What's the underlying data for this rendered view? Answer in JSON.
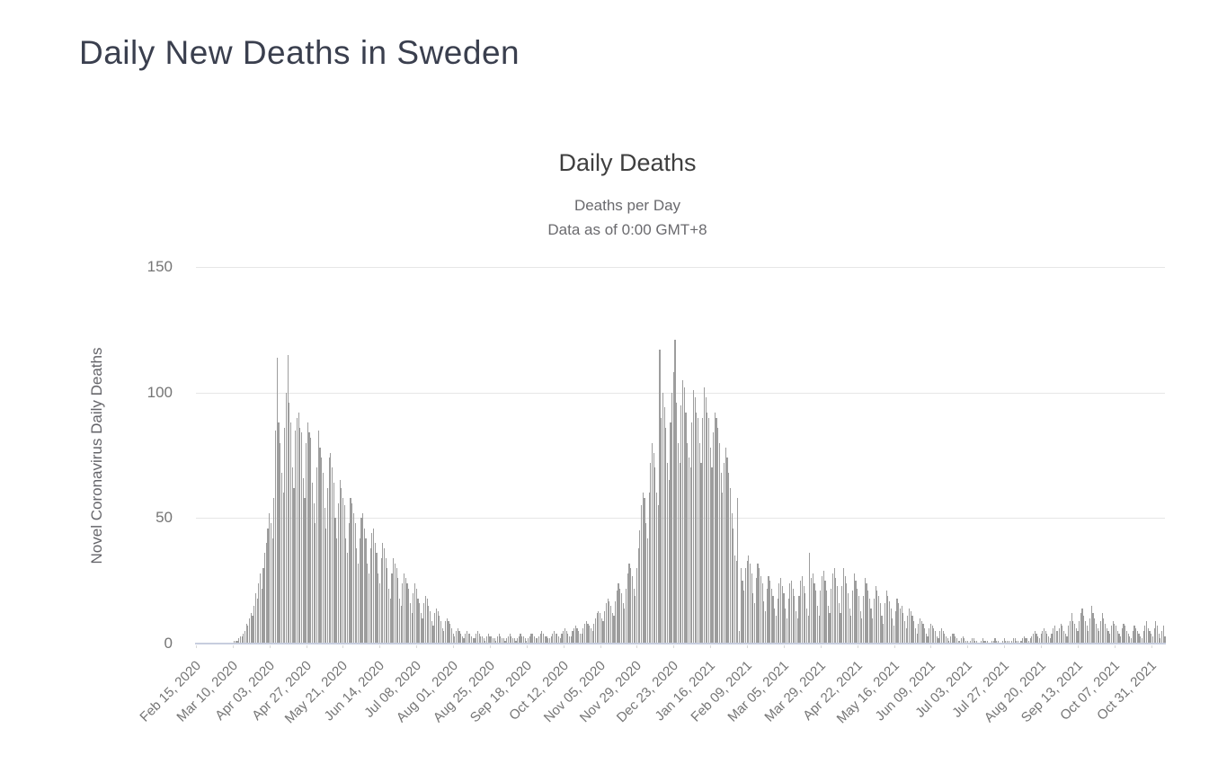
{
  "page": {
    "title": "Daily New Deaths in Sweden"
  },
  "chart_data": {
    "type": "bar",
    "title": "Daily Deaths",
    "subtitle1": "Deaths per Day",
    "subtitle2": "Data as of 0:00 GMT+8",
    "ylabel": "Novel Coronavirus Daily Deaths",
    "xlabel": "",
    "ylim": [
      0,
      150
    ],
    "yticks": [
      0,
      50,
      100,
      150
    ],
    "grid": true,
    "legend": false,
    "bar_color": "#9d9d9d",
    "gridline_color": "#e6e6e6",
    "axis_line_color": "#c7cdde",
    "x_start_date": "Feb 15, 2020",
    "x_tick_interval_days": 24,
    "x_tick_labels": [
      "Feb 15, 2020",
      "Mar 10, 2020",
      "Apr 03, 2020",
      "Apr 27, 2020",
      "May 21, 2020",
      "Jun 14, 2020",
      "Jul 08, 2020",
      "Aug 01, 2020",
      "Aug 25, 2020",
      "Sep 18, 2020",
      "Oct 12, 2020",
      "Nov 05, 2020",
      "Nov 29, 2020",
      "Dec 23, 2020",
      "Jan 16, 2021",
      "Feb 09, 2021",
      "Mar 05, 2021",
      "Mar 29, 2021",
      "Apr 22, 2021",
      "May 16, 2021",
      "Jun 09, 2021",
      "Jul 03, 2021",
      "Jul 27, 2021",
      "Aug 20, 2021",
      "Sep 13, 2021",
      "Oct 07, 2021",
      "Oct 31, 2021"
    ],
    "values": [
      0,
      0,
      0,
      0,
      0,
      0,
      0,
      0,
      0,
      0,
      0,
      0,
      0,
      0,
      0,
      0,
      0,
      0,
      0,
      0,
      0,
      0,
      0,
      0,
      0,
      1,
      1,
      1,
      2,
      3,
      3,
      4,
      5,
      8,
      7,
      10,
      12,
      11,
      15,
      20,
      18,
      24,
      28,
      22,
      30,
      36,
      40,
      46,
      52,
      48,
      42,
      58,
      85,
      114,
      88,
      80,
      68,
      60,
      86,
      100,
      115,
      96,
      88,
      70,
      62,
      85,
      90,
      92,
      86,
      84,
      66,
      58,
      80,
      88,
      84,
      82,
      64,
      56,
      48,
      70,
      85,
      78,
      74,
      68,
      54,
      46,
      62,
      74,
      76,
      70,
      64,
      50,
      42,
      56,
      65,
      62,
      58,
      55,
      42,
      36,
      48,
      58,
      56,
      52,
      48,
      38,
      32,
      42,
      50,
      52,
      46,
      42,
      32,
      28,
      38,
      44,
      46,
      40,
      36,
      28,
      24,
      34,
      40,
      38,
      34,
      30,
      22,
      18,
      28,
      34,
      32,
      30,
      26,
      18,
      15,
      24,
      28,
      26,
      24,
      22,
      16,
      12,
      20,
      24,
      22,
      18,
      16,
      12,
      10,
      16,
      19,
      18,
      15,
      13,
      9,
      7,
      12,
      14,
      13,
      11,
      9,
      6,
      5,
      9,
      10,
      9,
      8,
      6,
      4,
      3,
      5,
      6,
      5,
      4,
      3,
      2,
      4,
      5,
      4,
      4,
      3,
      2,
      2,
      4,
      5,
      4,
      3,
      3,
      2,
      1,
      3,
      4,
      3,
      3,
      2,
      2,
      1,
      3,
      4,
      3,
      2,
      2,
      1,
      2,
      3,
      4,
      3,
      2,
      2,
      1,
      2,
      3,
      4,
      3,
      3,
      2,
      1,
      2,
      3,
      4,
      4,
      3,
      2,
      2,
      3,
      4,
      5,
      4,
      3,
      3,
      2,
      2,
      3,
      4,
      5,
      4,
      4,
      3,
      2,
      4,
      5,
      6,
      5,
      4,
      3,
      3,
      5,
      6,
      7,
      6,
      5,
      4,
      4,
      6,
      8,
      9,
      8,
      7,
      6,
      5,
      8,
      10,
      12,
      13,
      12,
      10,
      9,
      13,
      16,
      18,
      17,
      15,
      12,
      11,
      17,
      21,
      24,
      22,
      20,
      16,
      14,
      22,
      28,
      32,
      30,
      27,
      22,
      19,
      30,
      38,
      45,
      55,
      60,
      58,
      48,
      42,
      60,
      72,
      80,
      76,
      70,
      60,
      55,
      117,
      90,
      100,
      94,
      86,
      72,
      65,
      88,
      100,
      108,
      121,
      96,
      80,
      72,
      95,
      105,
      102,
      92,
      80,
      74,
      70,
      88,
      101,
      98,
      92,
      90,
      80,
      72,
      90,
      102,
      98,
      92,
      90,
      78,
      70,
      84,
      92,
      90,
      86,
      80,
      68,
      60,
      72,
      78,
      74,
      68,
      62,
      52,
      46,
      35,
      33,
      58,
      5,
      30,
      25,
      21,
      30,
      33,
      35,
      32,
      28,
      20,
      16,
      26,
      32,
      30,
      27,
      24,
      17,
      13,
      22,
      27,
      25,
      22,
      19,
      14,
      11,
      18,
      24,
      26,
      23,
      20,
      14,
      10,
      18,
      24,
      25,
      22,
      19,
      13,
      10,
      19,
      25,
      27,
      23,
      20,
      14,
      11,
      36,
      26,
      28,
      24,
      21,
      15,
      11,
      21,
      27,
      29,
      25,
      21,
      15,
      12,
      22,
      28,
      30,
      26,
      23,
      16,
      12,
      23,
      30,
      27,
      24,
      20,
      14,
      11,
      21,
      28,
      25,
      22,
      19,
      13,
      10,
      19,
      26,
      24,
      21,
      18,
      14,
      10,
      18,
      23,
      21,
      19,
      16,
      11,
      8,
      16,
      21,
      19,
      17,
      14,
      10,
      7,
      13,
      18,
      16,
      14,
      15,
      12,
      9,
      6,
      11,
      14,
      13,
      11,
      9,
      6,
      4,
      8,
      10,
      9,
      8,
      6,
      4,
      3,
      6,
      8,
      7,
      6,
      5,
      3,
      2,
      5,
      6,
      5,
      4,
      3,
      2,
      1,
      3,
      4,
      4,
      3,
      2,
      1,
      1,
      2,
      3,
      2,
      1,
      1,
      0,
      1,
      2,
      2,
      1,
      1,
      0,
      0,
      1,
      2,
      1,
      1,
      1,
      0,
      0,
      1,
      1,
      2,
      1,
      1,
      0,
      0,
      1,
      2,
      1,
      1,
      1,
      0,
      1,
      2,
      2,
      1,
      1,
      0,
      1,
      2,
      3,
      2,
      2,
      1,
      2,
      3,
      4,
      5,
      4,
      3,
      2,
      4,
      5,
      6,
      5,
      4,
      3,
      2,
      4,
      6,
      7,
      5,
      5,
      6,
      8,
      7,
      5,
      4,
      3,
      7,
      9,
      12,
      9,
      8,
      6,
      5,
      9,
      12,
      14,
      11,
      9,
      7,
      5,
      10,
      15,
      12,
      10,
      8,
      6,
      5,
      9,
      12,
      10,
      8,
      6,
      5,
      4,
      7,
      9,
      8,
      7,
      5,
      4,
      3,
      6,
      8,
      7,
      5,
      4,
      3,
      2,
      5,
      7,
      6,
      5,
      4,
      3,
      2,
      5,
      7,
      9,
      6,
      5,
      4,
      3,
      6,
      9,
      7,
      4,
      2,
      5,
      7,
      3
    ]
  }
}
